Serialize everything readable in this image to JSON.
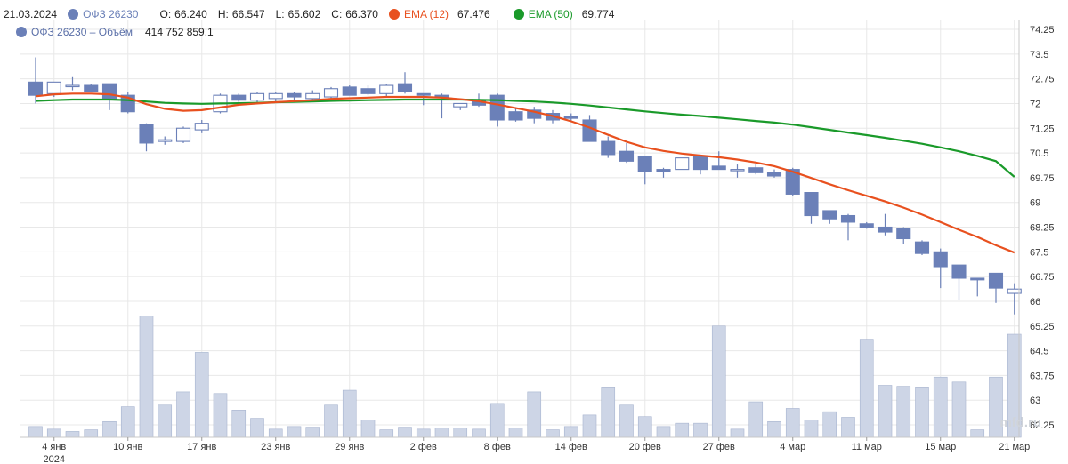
{
  "legend": {
    "date": "21.03.2024",
    "instrument": "ОФЗ 26230",
    "instrument_color": "#6b80b8",
    "o_label": "O:",
    "o_value": "66.240",
    "h_label": "H:",
    "h_value": "66.547",
    "l_label": "L:",
    "l_value": "65.602",
    "c_label": "C:",
    "c_value": "66.370",
    "ema12_label": "EMA (12)",
    "ema12_value": "67.476",
    "ema12_color": "#e8501e",
    "ema50_label": "EMA (50)",
    "ema50_value": "69.774",
    "ema50_color": "#1a9a2a",
    "volume_label": "ОФЗ 26230 – Объём",
    "volume_value": "414 752 859.1"
  },
  "watermark": "mfd.ru",
  "colors": {
    "candle_down": "#6b80b8",
    "candle_up_fill": "#ffffff",
    "candle_border": "#6b80b8",
    "volume_fill": "#cdd5e6",
    "volume_stroke": "#a8b4cf",
    "grid": "#e8e8e8",
    "ema12": "#e8501e",
    "ema50": "#1a9a2a"
  },
  "chart_data": {
    "type": "candlestick",
    "y_ticks": [
      "74.25",
      "73.5",
      "72.75",
      "72",
      "71.25",
      "70.5",
      "69.75",
      "69",
      "68.25",
      "67.5",
      "66.75",
      "66",
      "65.25",
      "64.5",
      "63.75",
      "63",
      "62.25"
    ],
    "ylim": [
      62.0,
      74.3
    ],
    "x_ticks": [
      {
        "i": 1,
        "label": "4 янв",
        "sub": "2024"
      },
      {
        "i": 5,
        "label": "10 янв"
      },
      {
        "i": 9,
        "label": "17 янв"
      },
      {
        "i": 13,
        "label": "23 янв"
      },
      {
        "i": 17,
        "label": "29 янв"
      },
      {
        "i": 21,
        "label": "2 фев"
      },
      {
        "i": 25,
        "label": "8 фев"
      },
      {
        "i": 29,
        "label": "14 фев"
      },
      {
        "i": 33,
        "label": "20 фев"
      },
      {
        "i": 37,
        "label": "27 фев"
      },
      {
        "i": 41,
        "label": "4 мар"
      },
      {
        "i": 45,
        "label": "11 мар"
      },
      {
        "i": 49,
        "label": "15 мар"
      },
      {
        "i": 53,
        "label": "21 мар"
      }
    ],
    "candles": [
      [
        72.65,
        73.4,
        72.0,
        72.25
      ],
      [
        72.3,
        72.65,
        72.2,
        72.65
      ],
      [
        72.55,
        72.8,
        72.4,
        72.55
      ],
      [
        72.55,
        72.6,
        72.35,
        72.35
      ],
      [
        72.6,
        72.6,
        71.8,
        72.15
      ],
      [
        72.25,
        72.35,
        71.7,
        71.75
      ],
      [
        71.35,
        71.4,
        70.55,
        70.8
      ],
      [
        70.85,
        71.0,
        70.75,
        70.9
      ],
      [
        70.85,
        71.3,
        70.8,
        71.25
      ],
      [
        71.2,
        71.5,
        71.1,
        71.4
      ],
      [
        71.75,
        72.3,
        71.7,
        72.25
      ],
      [
        72.25,
        72.3,
        72.05,
        72.1
      ],
      [
        72.1,
        72.35,
        72.0,
        72.3
      ],
      [
        72.15,
        72.35,
        72.05,
        72.3
      ],
      [
        72.3,
        72.35,
        72.1,
        72.2
      ],
      [
        72.15,
        72.4,
        72.05,
        72.3
      ],
      [
        72.2,
        72.5,
        72.15,
        72.45
      ],
      [
        72.5,
        72.55,
        72.25,
        72.25
      ],
      [
        72.45,
        72.55,
        72.25,
        72.3
      ],
      [
        72.3,
        72.6,
        72.2,
        72.55
      ],
      [
        72.6,
        72.95,
        72.3,
        72.35
      ],
      [
        72.3,
        72.3,
        71.95,
        72.25
      ],
      [
        72.25,
        72.3,
        71.55,
        72.2
      ],
      [
        71.9,
        72.0,
        71.8,
        72.0
      ],
      [
        72.1,
        72.3,
        71.9,
        71.95
      ],
      [
        72.25,
        72.3,
        71.3,
        71.5
      ],
      [
        71.75,
        71.85,
        71.45,
        71.5
      ],
      [
        71.8,
        71.9,
        71.4,
        71.55
      ],
      [
        71.7,
        71.8,
        71.4,
        71.5
      ],
      [
        71.6,
        71.7,
        71.45,
        71.55
      ],
      [
        71.5,
        71.65,
        70.85,
        70.85
      ],
      [
        70.85,
        71.0,
        70.35,
        70.45
      ],
      [
        70.55,
        70.8,
        70.2,
        70.25
      ],
      [
        70.4,
        70.4,
        69.55,
        69.95
      ],
      [
        70.0,
        70.05,
        69.75,
        69.95
      ],
      [
        70.0,
        70.35,
        70.0,
        70.35
      ],
      [
        70.4,
        70.45,
        69.85,
        70.0
      ],
      [
        70.1,
        70.55,
        70.0,
        70.0
      ],
      [
        70.0,
        70.15,
        69.75,
        70.0
      ],
      [
        70.05,
        70.15,
        69.85,
        69.9
      ],
      [
        69.9,
        70.0,
        69.75,
        69.8
      ],
      [
        70.0,
        70.05,
        69.2,
        69.25
      ],
      [
        69.3,
        69.3,
        68.35,
        68.6
      ],
      [
        68.75,
        68.75,
        68.35,
        68.5
      ],
      [
        68.6,
        68.65,
        67.85,
        68.4
      ],
      [
        68.35,
        68.4,
        68.2,
        68.25
      ],
      [
        68.25,
        68.65,
        68.0,
        68.1
      ],
      [
        68.2,
        68.25,
        67.75,
        67.9
      ],
      [
        67.8,
        67.85,
        67.4,
        67.45
      ],
      [
        67.5,
        67.6,
        66.4,
        67.05
      ],
      [
        67.1,
        67.1,
        66.05,
        66.7
      ],
      [
        66.7,
        66.7,
        66.15,
        66.65
      ],
      [
        66.85,
        66.85,
        65.95,
        66.4
      ],
      [
        66.24,
        66.547,
        65.602,
        66.37
      ]
    ],
    "ema12": [
      72.22,
      72.28,
      72.3,
      72.3,
      72.28,
      72.18,
      71.98,
      71.84,
      71.78,
      71.8,
      71.88,
      71.96,
      72.0,
      72.04,
      72.07,
      72.1,
      72.14,
      72.16,
      72.18,
      72.2,
      72.2,
      72.2,
      72.18,
      72.13,
      72.07,
      71.97,
      71.86,
      71.75,
      71.62,
      71.46,
      71.27,
      71.05,
      70.84,
      70.67,
      70.56,
      70.48,
      70.42,
      70.37,
      70.3,
      70.21,
      70.1,
      69.93,
      69.74,
      69.55,
      69.37,
      69.2,
      69.03,
      68.84,
      68.63,
      68.4,
      68.17,
      67.95,
      67.7,
      67.476
    ],
    "ema50": [
      72.08,
      72.1,
      72.12,
      72.12,
      72.12,
      72.1,
      72.06,
      72.02,
      72.0,
      71.99,
      72.0,
      72.01,
      72.02,
      72.04,
      72.05,
      72.06,
      72.08,
      72.09,
      72.1,
      72.11,
      72.12,
      72.12,
      72.12,
      72.12,
      72.11,
      72.1,
      72.08,
      72.06,
      72.03,
      71.99,
      71.94,
      71.88,
      71.82,
      71.76,
      71.71,
      71.66,
      71.62,
      71.57,
      71.52,
      71.47,
      71.42,
      71.36,
      71.28,
      71.2,
      71.12,
      71.04,
      70.96,
      70.87,
      70.78,
      70.67,
      70.55,
      70.41,
      70.25,
      69.774
    ],
    "volumes": [
      62.2,
      62.12,
      62.05,
      62.1,
      62.35,
      62.8,
      65.55,
      62.85,
      63.25,
      64.45,
      63.2,
      62.7,
      62.45,
      62.12,
      62.2,
      62.18,
      62.85,
      63.3,
      62.4,
      62.1,
      62.18,
      62.12,
      62.15,
      62.15,
      62.12,
      62.9,
      62.15,
      63.25,
      62.1,
      62.2,
      62.55,
      63.4,
      62.85,
      62.5,
      62.2,
      62.3,
      62.3,
      65.25,
      62.12,
      62.95,
      62.35,
      62.75,
      62.4,
      62.65,
      62.48,
      64.85,
      63.45,
      63.42,
      63.4,
      63.7,
      63.55,
      62.1,
      63.7,
      65.0
    ]
  }
}
